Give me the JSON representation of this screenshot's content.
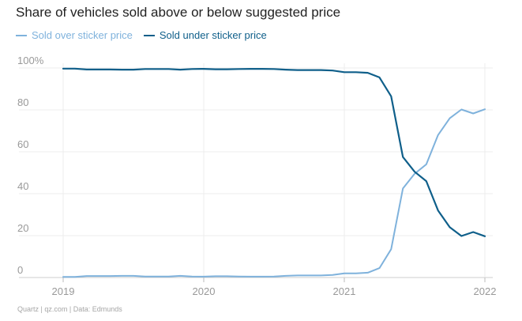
{
  "chart_data": {
    "type": "line",
    "title": "Share of vehicles sold above or below suggested price",
    "source": "Quartz | qz.com | Data: Edmunds",
    "colors": {
      "over": "#7fb2dc",
      "under": "#0f5f8a"
    },
    "x_ticks": [
      2019,
      2020,
      2021,
      2022
    ],
    "y_ticks": [
      "0",
      "20",
      "40",
      "60",
      "80",
      "100%"
    ],
    "xlim": [
      2019.0,
      2022.0
    ],
    "ylim": [
      0,
      100
    ],
    "grid": true,
    "legend_position": "top-left",
    "series": [
      {
        "name": "Sold over sticker price",
        "color_key": "over",
        "x": [
          2019.0,
          2019.083,
          2019.167,
          2019.25,
          2019.333,
          2019.417,
          2019.5,
          2019.583,
          2019.667,
          2019.75,
          2019.833,
          2019.917,
          2020.0,
          2020.083,
          2020.167,
          2020.25,
          2020.333,
          2020.417,
          2020.5,
          2020.583,
          2020.667,
          2020.75,
          2020.833,
          2020.917,
          2021.0,
          2021.083,
          2021.167,
          2021.25,
          2021.333,
          2021.417,
          2021.5,
          2021.583,
          2021.667,
          2021.75,
          2021.833,
          2021.917,
          2022.0
        ],
        "values": [
          0.3,
          0.3,
          0.7,
          0.7,
          0.7,
          0.8,
          0.8,
          0.5,
          0.5,
          0.5,
          0.8,
          0.5,
          0.4,
          0.6,
          0.6,
          0.5,
          0.4,
          0.4,
          0.5,
          0.8,
          1.0,
          1.0,
          1.0,
          1.2,
          2.0,
          2.0,
          2.3,
          4.5,
          13.5,
          42.5,
          49.5,
          54.0,
          68.0,
          76.0,
          80.2,
          78.3,
          80.3
        ]
      },
      {
        "name": "Sold under sticker price",
        "color_key": "under",
        "x": [
          2019.0,
          2019.083,
          2019.167,
          2019.25,
          2019.333,
          2019.417,
          2019.5,
          2019.583,
          2019.667,
          2019.75,
          2019.833,
          2019.917,
          2020.0,
          2020.083,
          2020.167,
          2020.25,
          2020.333,
          2020.417,
          2020.5,
          2020.583,
          2020.667,
          2020.75,
          2020.833,
          2020.917,
          2021.0,
          2021.083,
          2021.167,
          2021.25,
          2021.333,
          2021.417,
          2021.5,
          2021.583,
          2021.667,
          2021.75,
          2021.833,
          2021.917,
          2022.0
        ],
        "values": [
          99.7,
          99.7,
          99.3,
          99.3,
          99.3,
          99.2,
          99.2,
          99.5,
          99.5,
          99.5,
          99.2,
          99.5,
          99.6,
          99.4,
          99.4,
          99.5,
          99.6,
          99.6,
          99.5,
          99.2,
          99.0,
          99.0,
          99.0,
          98.8,
          98.0,
          98.0,
          97.7,
          95.5,
          86.5,
          57.5,
          50.5,
          46.0,
          32.0,
          24.0,
          19.8,
          21.7,
          19.7
        ]
      }
    ]
  }
}
